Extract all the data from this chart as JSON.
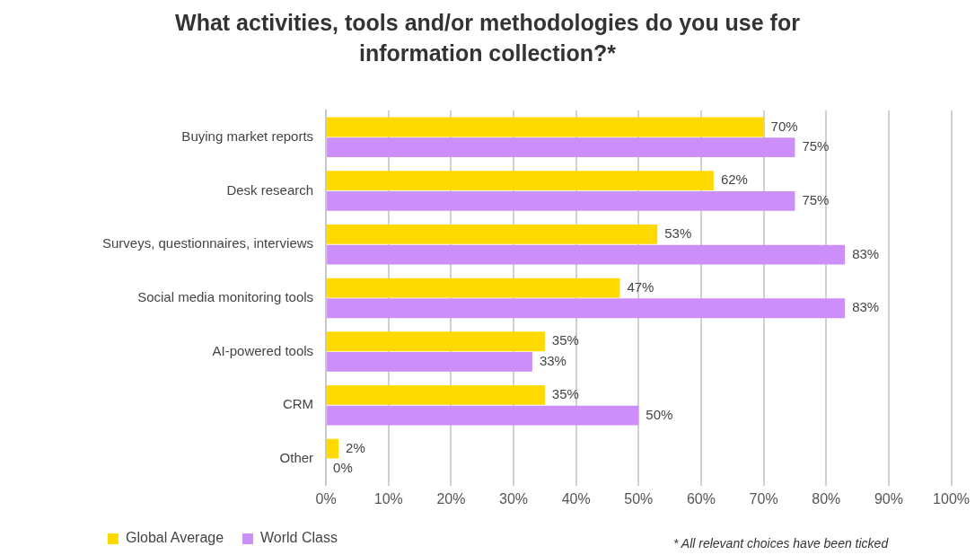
{
  "chart_data": {
    "type": "bar",
    "orientation": "horizontal",
    "title": "What activities, tools and/or methodologies do you use for information collection?*",
    "categories": [
      "Buying market reports",
      "Desk research",
      "Surveys, questionnaires, interviews",
      "Social media monitoring tools",
      "AI-powered tools",
      "CRM",
      "Other"
    ],
    "series": [
      {
        "name": "Global Average",
        "color": "#ffd900",
        "values": [
          70,
          62,
          53,
          47,
          35,
          35,
          2
        ],
        "value_labels": [
          "70%",
          "62%",
          "53%",
          "47%",
          "35%",
          "35%",
          "2%"
        ]
      },
      {
        "name": "World Class",
        "color": "#cc8ef8",
        "values": [
          75,
          75,
          83,
          83,
          33,
          50,
          0
        ],
        "value_labels": [
          "75%",
          "75%",
          "83%",
          "83%",
          "33%",
          "50%",
          "0%"
        ]
      }
    ],
    "xlim": [
      0,
      100
    ],
    "xticks": [
      {
        "value": 0,
        "label": "0%"
      },
      {
        "value": 10,
        "label": "10%"
      },
      {
        "value": 20,
        "label": "20%"
      },
      {
        "value": 30,
        "label": "30%"
      },
      {
        "value": 40,
        "label": "40%"
      },
      {
        "value": 50,
        "label": "50%"
      },
      {
        "value": 60,
        "label": "60%"
      },
      {
        "value": 70,
        "label": "70%"
      },
      {
        "value": 80,
        "label": "80%"
      },
      {
        "value": 90,
        "label": "90%"
      },
      {
        "value": 100,
        "label": "100%"
      }
    ],
    "grid": "x",
    "legend": "bottom",
    "annotations": [
      "* All relevant choices have been ticked"
    ]
  }
}
